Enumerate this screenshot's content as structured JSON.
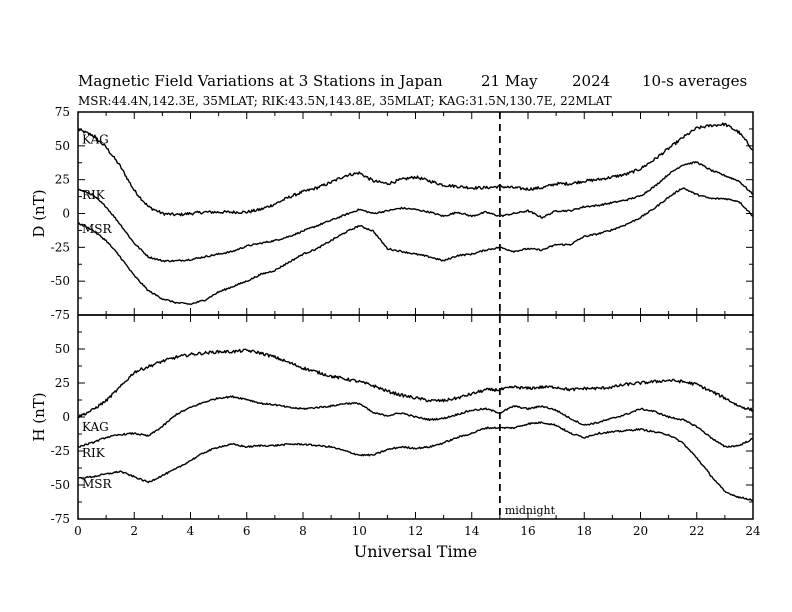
{
  "header": {
    "title": "Magnetic Field Variations at 3 Stations in Japan",
    "date": "21 May",
    "year": "2024",
    "averaging": "10-s averages",
    "stations_line": "MSR:44.4N,142.3E, 35MLAT;  RIK:43.5N,143.8E, 35MLAT;  KAG:31.5N,130.7E, 22MLAT"
  },
  "colors": {
    "line": "#000000",
    "background": "#ffffff"
  },
  "chart_data": [
    {
      "type": "line",
      "panel": "D",
      "ylabel": "D (nT)",
      "ylim": [
        -75,
        75
      ],
      "yticks": [
        "75",
        "50",
        "25",
        "0",
        "-25",
        "-50",
        "-75"
      ],
      "xlim": [
        0,
        24
      ],
      "series": [
        {
          "name": "KAG",
          "x": [
            0,
            0.5,
            1,
            1.5,
            2,
            2.5,
            3,
            3.5,
            4,
            4.5,
            5,
            5.5,
            6,
            6.5,
            7,
            7.5,
            8,
            8.5,
            9,
            9.5,
            10,
            10.5,
            11,
            11.5,
            12,
            12.5,
            13,
            13.5,
            14,
            14.5,
            15,
            15.5,
            16,
            16.5,
            17,
            17.5,
            18,
            18.5,
            19,
            19.5,
            20,
            20.5,
            21,
            21.5,
            22,
            22.5,
            23,
            23.5,
            24
          ],
          "y": [
            62,
            58,
            49,
            35,
            17,
            5,
            0,
            -1,
            0,
            1,
            1,
            1,
            1,
            3,
            7,
            12,
            16,
            19,
            23,
            28,
            30,
            24,
            22,
            25,
            27,
            24,
            21,
            20,
            19,
            19,
            20,
            19,
            18,
            19,
            22,
            22,
            24,
            25,
            27,
            29,
            33,
            40,
            48,
            56,
            63,
            65,
            66,
            60,
            47
          ]
        },
        {
          "name": "RIK",
          "x": [
            0,
            0.5,
            1,
            1.5,
            2,
            2.5,
            3,
            3.5,
            4,
            4.5,
            5,
            5.5,
            6,
            6.5,
            7,
            7.5,
            8,
            8.5,
            9,
            9.5,
            10,
            10.5,
            11,
            11.5,
            12,
            12.5,
            13,
            13.5,
            14,
            14.5,
            15,
            15.5,
            16,
            16.5,
            17,
            17.5,
            18,
            18.5,
            19,
            19.5,
            20,
            20.5,
            21,
            21.5,
            22,
            22.5,
            23,
            23.5,
            24
          ],
          "y": [
            18,
            14,
            5,
            -8,
            -22,
            -32,
            -35,
            -35,
            -34,
            -32,
            -30,
            -28,
            -24,
            -22,
            -20,
            -17,
            -13,
            -9,
            -5,
            -1,
            3,
            0,
            2,
            4,
            3,
            1,
            -2,
            1,
            -2,
            1,
            -2,
            0,
            2,
            -3,
            2,
            2,
            5,
            6,
            8,
            10,
            13,
            20,
            29,
            36,
            38,
            32,
            28,
            24,
            14
          ]
        },
        {
          "name": "MSR",
          "x": [
            0,
            0.5,
            1,
            1.5,
            2,
            2.5,
            3,
            3.5,
            4,
            4.5,
            5,
            5.5,
            6,
            6.5,
            7,
            7.5,
            8,
            8.5,
            9,
            9.5,
            10,
            10.5,
            11,
            11.5,
            12,
            12.5,
            13,
            13.5,
            14,
            14.5,
            15,
            15.5,
            16,
            16.5,
            17,
            17.5,
            18,
            18.5,
            19,
            19.5,
            20,
            20.5,
            21,
            21.5,
            22,
            22.5,
            23,
            23.5,
            24
          ],
          "y": [
            -7,
            -12,
            -20,
            -32,
            -46,
            -57,
            -63,
            -66,
            -67,
            -64,
            -58,
            -54,
            -50,
            -45,
            -42,
            -36,
            -30,
            -26,
            -20,
            -14,
            -9,
            -13,
            -26,
            -28,
            -30,
            -32,
            -35,
            -31,
            -30,
            -27,
            -25,
            -28,
            -26,
            -27,
            -23,
            -23,
            -17,
            -15,
            -12,
            -8,
            -3,
            4,
            12,
            19,
            14,
            11,
            11,
            9,
            -2
          ]
        }
      ]
    },
    {
      "type": "line",
      "panel": "H",
      "ylabel": "H (nT)",
      "xlabel": "Universal Time",
      "ylim": [
        -75,
        75
      ],
      "yticks": [
        "50",
        "25",
        "0",
        "-25",
        "-50",
        "-75"
      ],
      "xlim": [
        0,
        24
      ],
      "xticks": [
        "0",
        "2",
        "4",
        "6",
        "8",
        "10",
        "12",
        "14",
        "16",
        "18",
        "20",
        "22",
        "24"
      ],
      "annotation": "midnight",
      "annotation_x": 15,
      "series": [
        {
          "name": "KAG",
          "x": [
            0,
            0.5,
            1,
            1.5,
            2,
            2.5,
            3,
            3.5,
            4,
            4.5,
            5,
            5.5,
            6,
            6.5,
            7,
            7.5,
            8,
            8.5,
            9,
            9.5,
            10,
            10.5,
            11,
            11.5,
            12,
            12.5,
            13,
            13.5,
            14,
            14.5,
            15,
            15.5,
            16,
            16.5,
            17,
            17.5,
            18,
            18.5,
            19,
            19.5,
            20,
            20.5,
            21,
            21.5,
            22,
            22.5,
            23,
            23.5,
            24
          ],
          "y": [
            0,
            5,
            12,
            22,
            33,
            37,
            41,
            44,
            46,
            47,
            48,
            48,
            49,
            47,
            44,
            40,
            36,
            33,
            30,
            28,
            26,
            23,
            19,
            16,
            14,
            12,
            12,
            14,
            17,
            20,
            20,
            22,
            21,
            22,
            22,
            20,
            21,
            21,
            22,
            24,
            25,
            26,
            27,
            26,
            24,
            19,
            14,
            8,
            5
          ]
        },
        {
          "name": "RIK",
          "x": [
            0,
            0.5,
            1,
            1.5,
            2,
            2.5,
            3,
            3.5,
            4,
            4.5,
            5,
            5.5,
            6,
            6.5,
            7,
            7.5,
            8,
            8.5,
            9,
            9.5,
            10,
            10.5,
            11,
            11.5,
            12,
            12.5,
            13,
            13.5,
            14,
            14.5,
            15,
            15.5,
            16,
            16.5,
            17,
            17.5,
            18,
            18.5,
            19,
            19.5,
            20,
            20.5,
            21,
            21.5,
            22,
            22.5,
            23,
            23.5,
            24
          ],
          "y": [
            -22,
            -19,
            -15,
            -13,
            -12,
            -14,
            -7,
            2,
            7,
            11,
            14,
            15,
            13,
            10,
            9,
            7,
            6,
            7,
            8,
            10,
            10,
            3,
            1,
            3,
            0,
            -2,
            -1,
            2,
            5,
            6,
            3,
            8,
            6,
            8,
            5,
            -1,
            -6,
            -4,
            -1,
            2,
            6,
            4,
            0,
            -2,
            -7,
            -15,
            -22,
            -21,
            -16
          ]
        },
        {
          "name": "MSR",
          "x": [
            0,
            0.5,
            1,
            1.5,
            2,
            2.5,
            3,
            3.5,
            4,
            4.5,
            5,
            5.5,
            6,
            6.5,
            7,
            7.5,
            8,
            8.5,
            9,
            9.5,
            10,
            10.5,
            11,
            11.5,
            12,
            12.5,
            13,
            13.5,
            14,
            14.5,
            15,
            15.5,
            16,
            16.5,
            17,
            17.5,
            18,
            18.5,
            19,
            19.5,
            20,
            20.5,
            21,
            21.5,
            22,
            22.5,
            23,
            23.5,
            24
          ],
          "y": [
            -45,
            -44,
            -42,
            -40,
            -44,
            -48,
            -43,
            -38,
            -32,
            -26,
            -22,
            -20,
            -22,
            -21,
            -21,
            -20,
            -20,
            -21,
            -22,
            -25,
            -28,
            -28,
            -24,
            -22,
            -23,
            -22,
            -19,
            -15,
            -12,
            -8,
            -8,
            -8,
            -5,
            -4,
            -6,
            -12,
            -15,
            -12,
            -11,
            -10,
            -9,
            -11,
            -13,
            -19,
            -30,
            -43,
            -55,
            -59,
            -61
          ]
        }
      ]
    }
  ]
}
